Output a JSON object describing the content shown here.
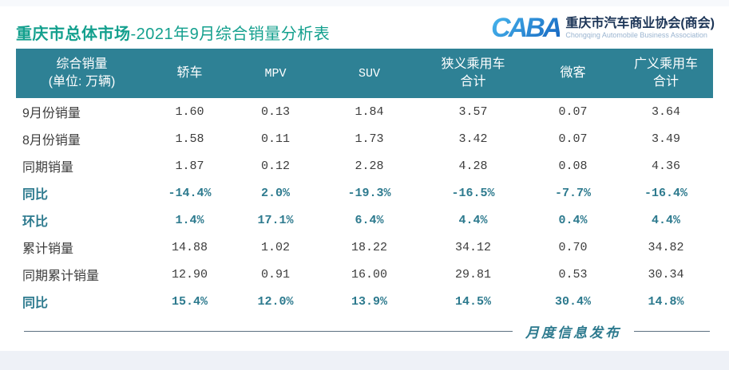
{
  "page": {
    "title_bold": "重庆市总体市场",
    "title_rest": "-2021年9月综合销量分析表",
    "footer_label": "月度信息发布"
  },
  "logo": {
    "acronym": "CABA",
    "org_name": "重庆市汽车商业协会(商会)",
    "org_name_en": "Chongqing Automobile Business Association"
  },
  "colors": {
    "header_bar_teal": "#2e8195",
    "title_teal": "#14a08e",
    "emphasis_teal": "#2d7a8e",
    "logo_blue": "#1e88d2",
    "bottom_strip": "#eef1f7"
  },
  "table": {
    "columns": [
      "综合销量\n(单位: 万辆)",
      "轿车",
      "MPV",
      "SUV",
      "狭义乘用车\n合计",
      "微客",
      "广义乘用车\n合计"
    ],
    "rows": [
      {
        "label": "9月份销量",
        "values": [
          "1.60",
          "0.13",
          "1.84",
          "3.57",
          "0.07",
          "3.64"
        ],
        "emphasis": false
      },
      {
        "label": "8月份销量",
        "values": [
          "1.58",
          "0.11",
          "1.73",
          "3.42",
          "0.07",
          "3.49"
        ],
        "emphasis": false
      },
      {
        "label": "同期销量",
        "values": [
          "1.87",
          "0.12",
          "2.28",
          "4.28",
          "0.08",
          "4.36"
        ],
        "emphasis": false
      },
      {
        "label": "同比",
        "values": [
          "-14.4%",
          "2.0%",
          "-19.3%",
          "-16.5%",
          "-7.7%",
          "-16.4%"
        ],
        "emphasis": true
      },
      {
        "label": "环比",
        "values": [
          "1.4%",
          "17.1%",
          "6.4%",
          "4.4%",
          "0.4%",
          "4.4%"
        ],
        "emphasis": true
      },
      {
        "label": "累计销量",
        "values": [
          "14.88",
          "1.02",
          "18.22",
          "34.12",
          "0.70",
          "34.82"
        ],
        "emphasis": false
      },
      {
        "label": "同期累计销量",
        "values": [
          "12.90",
          "0.91",
          "16.00",
          "29.81",
          "0.53",
          "30.34"
        ],
        "emphasis": false
      },
      {
        "label": "同比",
        "values": [
          "15.4%",
          "12.0%",
          "13.9%",
          "14.5%",
          "30.4%",
          "14.8%"
        ],
        "emphasis": true
      }
    ]
  }
}
